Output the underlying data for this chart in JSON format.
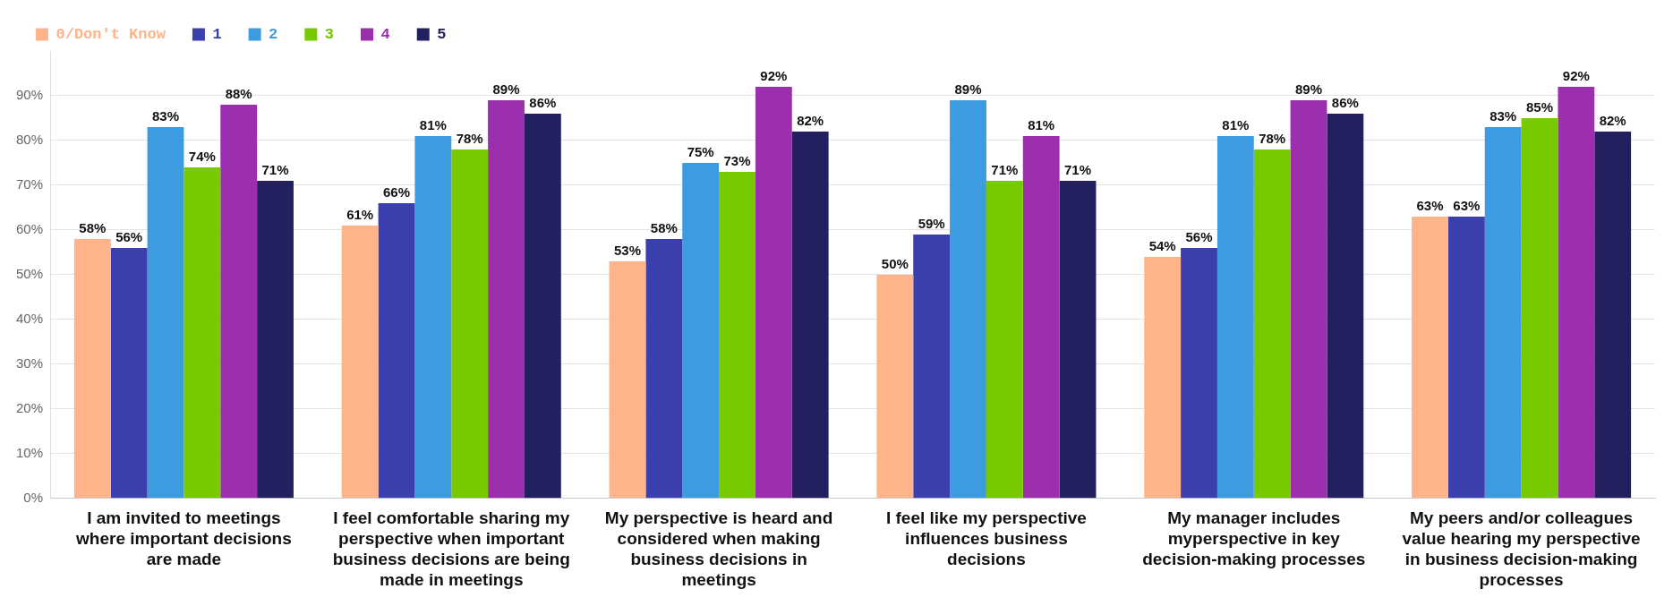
{
  "chart_data": {
    "type": "bar",
    "categories": [
      "I am invited to meetings where important decisions are made",
      "I feel comfortable sharing my perspective when important business decisions are being made in meetings",
      "My perspective is heard and considered when making business decisions in meetings",
      "I feel like my perspective influences business decisions",
      "My manager includes myperspective in key decision-making processes",
      "My peers and/or colleagues value hearing my perspective in business decision-making processes"
    ],
    "series": [
      {
        "name": "0/Don't Know",
        "color": "#ffb38a",
        "values": [
          58,
          61,
          53,
          50,
          54,
          63
        ],
        "value_labels": [
          "58%",
          "61%",
          "53%",
          "50%",
          "54%",
          "63%"
        ]
      },
      {
        "name": "1",
        "color": "#3a3fad",
        "values": [
          56,
          66,
          58,
          59,
          56,
          63
        ],
        "value_labels": [
          "56%",
          "66%",
          "58%",
          "59%",
          "56%",
          "63%"
        ]
      },
      {
        "name": "2",
        "color": "#3d9be0",
        "values": [
          83,
          81,
          75,
          89,
          81,
          83
        ],
        "value_labels": [
          "83%",
          "81%",
          "75%",
          "89%",
          "81%",
          "83%"
        ]
      },
      {
        "name": "3",
        "color": "#77c900",
        "values": [
          74,
          78,
          73,
          71,
          78,
          85
        ],
        "value_labels": [
          "74%",
          "78%",
          "73%",
          "71%",
          "78%",
          "85%"
        ]
      },
      {
        "name": "4",
        "color": "#9b2fae",
        "values": [
          88,
          89,
          92,
          81,
          89,
          92
        ],
        "value_labels": [
          "88%",
          "89%",
          "92%",
          "81%",
          "89%",
          "92%"
        ]
      },
      {
        "name": "5",
        "color": "#232060",
        "values": [
          71,
          86,
          82,
          71,
          86,
          82
        ],
        "value_labels": [
          "71%",
          "86%",
          "82%",
          "71%",
          "86%",
          "82%"
        ]
      }
    ],
    "yticks": [
      {
        "value": 0,
        "label": "0%"
      },
      {
        "value": 10,
        "label": "10%"
      },
      {
        "value": 20,
        "label": "20%"
      },
      {
        "value": 30,
        "label": "30%"
      },
      {
        "value": 40,
        "label": "40%"
      },
      {
        "value": 50,
        "label": "50%"
      },
      {
        "value": 60,
        "label": "60%"
      },
      {
        "value": 70,
        "label": "70%"
      },
      {
        "value": 80,
        "label": "80%"
      },
      {
        "value": 90,
        "label": "90%"
      }
    ],
    "ylim": [
      0,
      100
    ],
    "grid": "y",
    "legend": "top left"
  }
}
